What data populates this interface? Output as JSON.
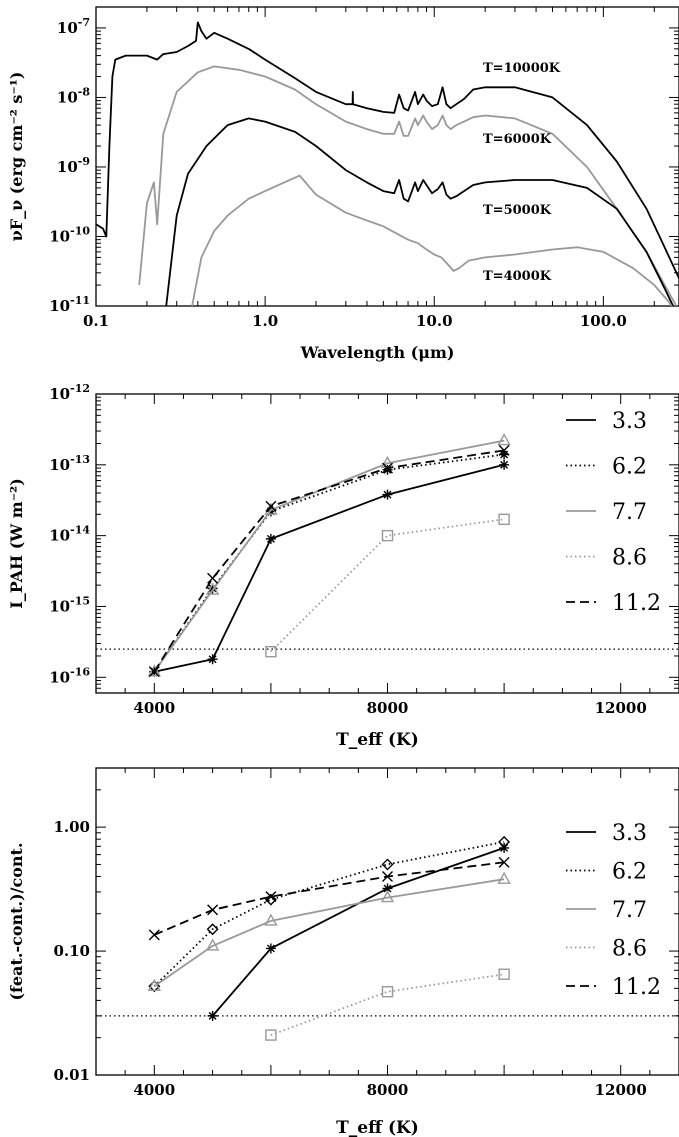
{
  "chart_data": [
    {
      "type": "line",
      "xlabel": "Wavelength (μm)",
      "ylabel": "νF_ν (erg cm⁻² s⁻¹)",
      "xscale": "log",
      "yscale": "log",
      "xlim": [
        0.1,
        280
      ],
      "ylim": [
        1e-11,
        2e-07
      ],
      "xticks": [
        {
          "v": 0.1,
          "label": "0.1"
        },
        {
          "v": 1,
          "label": "1.0"
        },
        {
          "v": 10,
          "label": "10.0"
        },
        {
          "v": 100,
          "label": "100.0"
        }
      ],
      "yticks": [
        {
          "v": 1e-07,
          "b": "10",
          "e": "-7"
        },
        {
          "v": 1e-08,
          "b": "10",
          "e": "-8"
        },
        {
          "v": 1e-09,
          "b": "10",
          "e": "-9"
        },
        {
          "v": 1e-10,
          "b": "10",
          "e": "-10"
        },
        {
          "v": 1e-11,
          "b": "10",
          "e": "-11"
        }
      ],
      "series": [
        {
          "name": "T=10000K",
          "color": "#000000",
          "points": [
            [
              0.1,
              1.5e-10
            ],
            [
              0.11,
              1.3e-10
            ],
            [
              0.115,
              1e-10
            ],
            [
              0.12,
              2e-09
            ],
            [
              0.125,
              2e-08
            ],
            [
              0.13,
              3.5e-08
            ],
            [
              0.15,
              4e-08
            ],
            [
              0.2,
              4e-08
            ],
            [
              0.23,
              3.5e-08
            ],
            [
              0.25,
              4.2e-08
            ],
            [
              0.3,
              4.5e-08
            ],
            [
              0.35,
              5.5e-08
            ],
            [
              0.39,
              6.5e-08
            ],
            [
              0.4,
              1.2e-07
            ],
            [
              0.42,
              9e-08
            ],
            [
              0.45,
              7e-08
            ],
            [
              0.5,
              8.5e-08
            ],
            [
              0.6,
              7e-08
            ],
            [
              0.8,
              5e-08
            ],
            [
              1.0,
              3.5e-08
            ],
            [
              1.5,
              1.9e-08
            ],
            [
              2,
              1.2e-08
            ],
            [
              3,
              8e-09
            ],
            [
              3.29,
              8e-09
            ],
            [
              3.3,
              1.2e-08
            ],
            [
              3.31,
              8e-09
            ],
            [
              4,
              7e-09
            ],
            [
              5,
              6.2e-09
            ],
            [
              5.8,
              6e-09
            ],
            [
              6.2,
              1.1e-08
            ],
            [
              6.6,
              7e-09
            ],
            [
              7.0,
              6.5e-09
            ],
            [
              7.7,
              1.2e-08
            ],
            [
              8.0,
              8e-09
            ],
            [
              8.6,
              1.1e-08
            ],
            [
              9.0,
              9e-09
            ],
            [
              9.7,
              7.5e-09
            ],
            [
              10.5,
              8e-09
            ],
            [
              11.2,
              1.4e-08
            ],
            [
              11.8,
              8e-09
            ],
            [
              12.5,
              7e-09
            ],
            [
              13.5,
              8e-09
            ],
            [
              15,
              9.5e-09
            ],
            [
              17,
              1.3e-08
            ],
            [
              20,
              1.4e-08
            ],
            [
              30,
              1.4e-08
            ],
            [
              50,
              1e-08
            ],
            [
              80,
              4e-09
            ],
            [
              120,
              1.2e-09
            ],
            [
              180,
              2.5e-10
            ],
            [
              230,
              7e-11
            ],
            [
              280,
              2.5e-11
            ]
          ]
        },
        {
          "name": "T=6000K",
          "color": "#999999",
          "points": [
            [
              0.18,
              2e-11
            ],
            [
              0.2,
              3e-10
            ],
            [
              0.22,
              6e-10
            ],
            [
              0.23,
              1.5e-10
            ],
            [
              0.25,
              3e-09
            ],
            [
              0.3,
              1.2e-08
            ],
            [
              0.4,
              2.3e-08
            ],
            [
              0.5,
              2.8e-08
            ],
            [
              0.7,
              2.5e-08
            ],
            [
              1.0,
              2e-08
            ],
            [
              1.5,
              1.3e-08
            ],
            [
              2,
              8e-09
            ],
            [
              3,
              4.5e-09
            ],
            [
              4,
              3.5e-09
            ],
            [
              5,
              3e-09
            ],
            [
              5.8,
              3e-09
            ],
            [
              6.2,
              4.5e-09
            ],
            [
              6.6,
              2.8e-09
            ],
            [
              7.0,
              2.8e-09
            ],
            [
              7.7,
              5e-09
            ],
            [
              8.0,
              4e-09
            ],
            [
              8.6,
              5.5e-09
            ],
            [
              9.0,
              4.5e-09
            ],
            [
              9.7,
              3.5e-09
            ],
            [
              10.5,
              4e-09
            ],
            [
              11.2,
              5.5e-09
            ],
            [
              11.8,
              4e-09
            ],
            [
              12.5,
              3.5e-09
            ],
            [
              13.5,
              4e-09
            ],
            [
              15,
              4.5e-09
            ],
            [
              17,
              5.2e-09
            ],
            [
              20,
              5.5e-09
            ],
            [
              30,
              5e-09
            ],
            [
              50,
              3e-09
            ],
            [
              80,
              1e-09
            ],
            [
              120,
              2.5e-10
            ],
            [
              180,
              6e-11
            ],
            [
              230,
              2e-11
            ],
            [
              270,
              1e-11
            ]
          ]
        },
        {
          "name": "T=5000K",
          "color": "#000000",
          "points": [
            [
              0.26,
              1e-11
            ],
            [
              0.3,
              2e-10
            ],
            [
              0.35,
              8e-10
            ],
            [
              0.45,
              2e-09
            ],
            [
              0.6,
              4e-09
            ],
            [
              0.8,
              5e-09
            ],
            [
              1.0,
              4.5e-09
            ],
            [
              1.5,
              3.2e-09
            ],
            [
              2,
              2e-09
            ],
            [
              3,
              9e-10
            ],
            [
              4,
              6e-10
            ],
            [
              5,
              4.5e-10
            ],
            [
              5.8,
              4.2e-10
            ],
            [
              6.2,
              6.5e-10
            ],
            [
              6.6,
              3.5e-10
            ],
            [
              7.0,
              3.2e-10
            ],
            [
              7.7,
              6e-10
            ],
            [
              8.0,
              4.5e-10
            ],
            [
              8.6,
              6.5e-10
            ],
            [
              9.0,
              5.5e-10
            ],
            [
              9.7,
              4.2e-10
            ],
            [
              10.5,
              4.8e-10
            ],
            [
              11.2,
              6e-10
            ],
            [
              11.8,
              4e-10
            ],
            [
              12.5,
              3.5e-10
            ],
            [
              13.5,
              3.8e-10
            ],
            [
              15,
              4.5e-10
            ],
            [
              17,
              5.5e-10
            ],
            [
              20,
              6e-10
            ],
            [
              30,
              6.5e-10
            ],
            [
              50,
              6.5e-10
            ],
            [
              80,
              5e-10
            ],
            [
              120,
              2.5e-10
            ],
            [
              180,
              6e-11
            ],
            [
              230,
              1.8e-11
            ],
            [
              270,
              8e-12
            ]
          ]
        },
        {
          "name": "T=4000K",
          "color": "#999999",
          "points": [
            [
              0.37,
              1e-11
            ],
            [
              0.42,
              5e-11
            ],
            [
              0.5,
              1.2e-10
            ],
            [
              0.6,
              2e-10
            ],
            [
              0.8,
              3.5e-10
            ],
            [
              1.0,
              4.5e-10
            ],
            [
              1.2,
              5.5e-10
            ],
            [
              1.5,
              7e-10
            ],
            [
              1.6,
              7.5e-10
            ],
            [
              2,
              4e-10
            ],
            [
              3,
              2.2e-10
            ],
            [
              4,
              1.7e-10
            ],
            [
              5,
              1.4e-10
            ],
            [
              6,
              1.1e-10
            ],
            [
              7,
              9e-11
            ],
            [
              8,
              8e-11
            ],
            [
              9,
              6.5e-11
            ],
            [
              10,
              5.5e-11
            ],
            [
              11,
              5e-11
            ],
            [
              12,
              4e-11
            ],
            [
              13,
              3.2e-11
            ],
            [
              14,
              3.5e-11
            ],
            [
              16,
              4.5e-11
            ],
            [
              20,
              5e-11
            ],
            [
              30,
              5.5e-11
            ],
            [
              50,
              6.5e-11
            ],
            [
              70,
              7e-11
            ],
            [
              100,
              6e-11
            ],
            [
              150,
              3.5e-11
            ],
            [
              200,
              2e-11
            ],
            [
              240,
              1.2e-11
            ],
            [
              270,
              8e-12
            ]
          ]
        }
      ],
      "annotations": [
        "T=10000K",
        "T=6000K",
        "T=5000K",
        "T=4000K"
      ]
    },
    {
      "type": "line",
      "xlabel": "T_eff (K)",
      "ylabel": "I_PAH (W m⁻²)",
      "yscale": "log",
      "xlim": [
        3000,
        13000
      ],
      "ylim": [
        6e-17,
        1e-12
      ],
      "xticks": [
        {
          "v": 4000,
          "label": "4000"
        },
        {
          "v": 8000,
          "label": "8000"
        },
        {
          "v": 12000,
          "label": "12000"
        }
      ],
      "yticks": [
        {
          "v": 1e-16,
          "b": "10",
          "e": "-16"
        },
        {
          "v": 1e-15,
          "b": "10",
          "e": "-15"
        },
        {
          "v": 1e-14,
          "b": "10",
          "e": "-14"
        },
        {
          "v": 1e-13,
          "b": "10",
          "e": "-13"
        },
        {
          "v": 1e-12,
          "b": "10",
          "e": "-12"
        }
      ],
      "threshold": 2.5e-16,
      "series": [
        {
          "name": "3.3",
          "color": "#000000",
          "dash": "solid",
          "marker": "asterisk",
          "x": [
            4000,
            5000,
            6000,
            8000,
            10000
          ],
          "y": [
            1.2e-16,
            1.8e-16,
            9e-15,
            3.8e-14,
            1e-13
          ]
        },
        {
          "name": "6.2",
          "color": "#000000",
          "dash": "dotted",
          "marker": "asterisk",
          "x": [
            4000,
            5000,
            6000,
            8000,
            10000
          ],
          "y": [
            1.2e-16,
            1.8e-15,
            2.2e-14,
            8.5e-14,
            1.4e-13
          ]
        },
        {
          "name": "7.7",
          "color": "#999999",
          "dash": "solid",
          "marker": "triangle",
          "x": [
            4000,
            5000,
            6000,
            8000,
            10000
          ],
          "y": [
            1.2e-16,
            1.7e-15,
            2.3e-14,
            1.05e-13,
            2.2e-13
          ]
        },
        {
          "name": "8.6",
          "color": "#999999",
          "dash": "dotted",
          "marker": "square",
          "x": [
            6000,
            8000,
            10000
          ],
          "y": [
            2.3e-16,
            1e-14,
            1.7e-14
          ]
        },
        {
          "name": "11.2",
          "color": "#000000",
          "dash": "dashed",
          "marker": "cross",
          "x": [
            4000,
            5000,
            6000,
            8000,
            10000
          ],
          "y": [
            1.2e-16,
            2.5e-15,
            2.6e-14,
            9e-14,
            1.6e-13
          ]
        }
      ],
      "legend": [
        "3.3",
        "6.2",
        "7.7",
        "8.6",
        "11.2"
      ]
    },
    {
      "type": "line",
      "xlabel": "T_eff (K)",
      "ylabel": "(feat.-cont.)/cont.",
      "yscale": "log",
      "xlim": [
        3000,
        13000
      ],
      "ylim": [
        0.01,
        3
      ],
      "xticks": [
        {
          "v": 4000,
          "label": "4000"
        },
        {
          "v": 8000,
          "label": "8000"
        },
        {
          "v": 12000,
          "label": "12000"
        }
      ],
      "yticks": [
        {
          "v": 0.01,
          "label": "0.01"
        },
        {
          "v": 0.1,
          "label": "0.10"
        },
        {
          "v": 1,
          "label": "1.00"
        }
      ],
      "threshold": 0.03,
      "series": [
        {
          "name": "3.3",
          "color": "#000000",
          "dash": "solid",
          "marker": "asterisk",
          "x": [
            5000,
            6000,
            8000,
            10000
          ],
          "y": [
            0.03,
            0.105,
            0.32,
            0.68
          ]
        },
        {
          "name": "6.2",
          "color": "#000000",
          "dash": "dotted",
          "marker": "diamond",
          "x": [
            4000,
            5000,
            6000,
            8000,
            10000
          ],
          "y": [
            0.052,
            0.15,
            0.26,
            0.5,
            0.76
          ]
        },
        {
          "name": "7.7",
          "color": "#999999",
          "dash": "solid",
          "marker": "triangle",
          "x": [
            4000,
            5000,
            6000,
            8000,
            10000
          ],
          "y": [
            0.052,
            0.11,
            0.175,
            0.27,
            0.38
          ]
        },
        {
          "name": "8.6",
          "color": "#999999",
          "dash": "dotted",
          "marker": "square",
          "x": [
            6000,
            8000,
            10000
          ],
          "y": [
            0.021,
            0.047,
            0.065
          ]
        },
        {
          "name": "11.2",
          "color": "#000000",
          "dash": "dashed",
          "marker": "cross",
          "x": [
            4000,
            5000,
            6000,
            8000,
            10000
          ],
          "y": [
            0.135,
            0.215,
            0.275,
            0.4,
            0.52
          ]
        }
      ],
      "legend": [
        "3.3",
        "6.2",
        "7.7",
        "8.6",
        "11.2"
      ]
    }
  ]
}
